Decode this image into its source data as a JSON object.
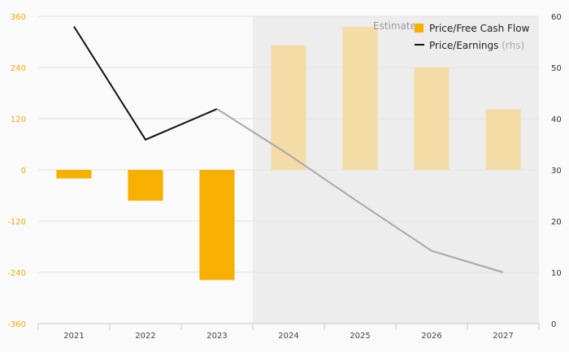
{
  "chart_data": {
    "type": "bar",
    "categories": [
      "2021",
      "2022",
      "2023",
      "2024",
      "2025",
      "2026",
      "2027"
    ],
    "estimate_label": "Estimate",
    "estimate_from": "2024",
    "series": [
      {
        "name": "Price/Free Cash Flow",
        "type": "bar",
        "axis": "left",
        "values": [
          -20,
          -72,
          -258,
          292,
          335,
          240,
          142
        ]
      },
      {
        "name": "Price/Earnings",
        "name_suffix": "(rhs)",
        "type": "line",
        "axis": "right",
        "values": [
          58,
          35.9,
          41.9,
          33,
          23.5,
          14.2,
          10
        ]
      }
    ],
    "y_left": {
      "min": -360,
      "max": 360,
      "ticks": [
        "360",
        "240",
        "120",
        "0",
        "-120",
        "-240",
        "-360"
      ]
    },
    "y_right": {
      "min": 0,
      "max": 60,
      "ticks": [
        "60",
        "50",
        "40",
        "30",
        "20",
        "10",
        "0"
      ]
    },
    "grid": true,
    "legend_position": "top-right",
    "colors": {
      "bar_actual": "#f7b000",
      "bar_estimate": "#f3dca6",
      "line_actual": "#111111",
      "line_estimate": "#a8a8a8",
      "estimate_bg": "#ededed",
      "left_axis_text": "#f2ac00"
    }
  }
}
